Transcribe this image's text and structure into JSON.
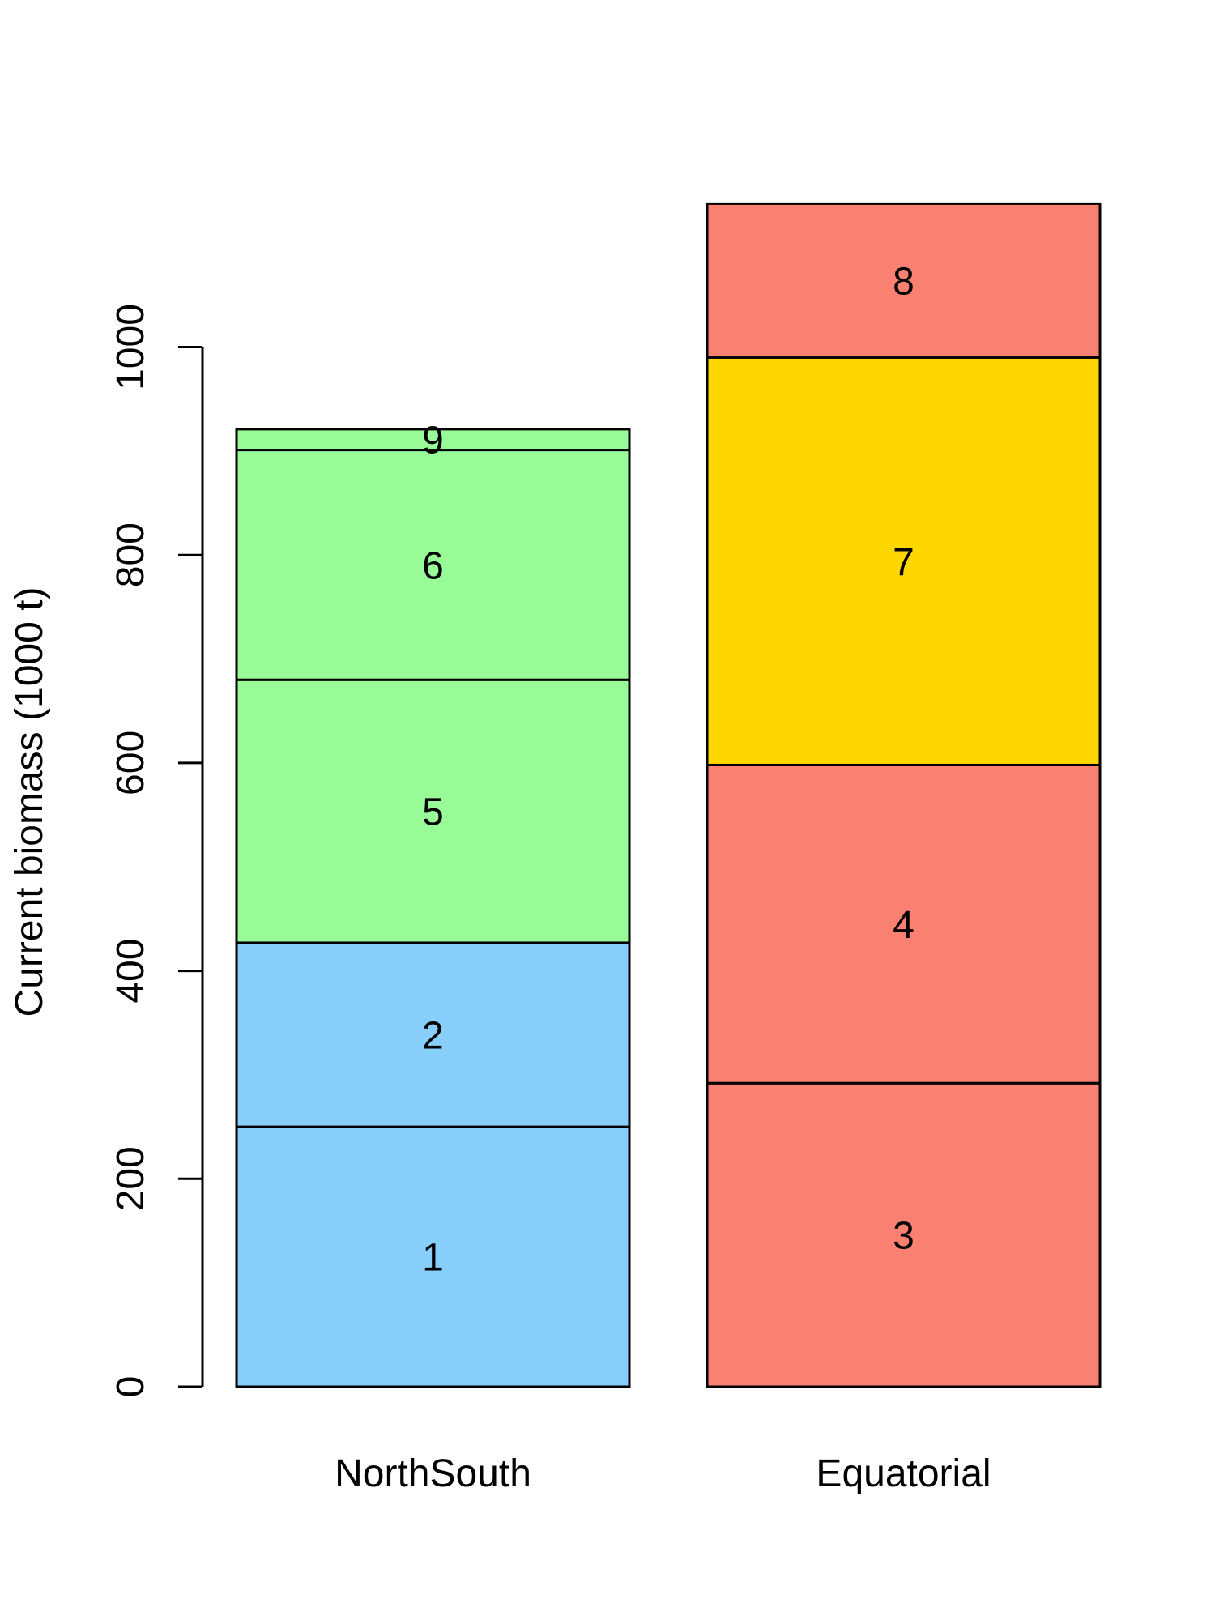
{
  "chart_data": {
    "type": "bar",
    "stacked": true,
    "ylabel": "Current biomass (1000 t)",
    "xlabel": "",
    "ylim": [
      0,
      1150
    ],
    "yticks": [
      0,
      200,
      400,
      600,
      800,
      1000
    ],
    "grid": false,
    "categories": [
      "NorthSouth",
      "Equatorial"
    ],
    "bars": [
      {
        "category": "NorthSouth",
        "segments": [
          {
            "label": "1",
            "value": 250,
            "color": "#87CEFA"
          },
          {
            "label": "2",
            "value": 177,
            "color": "#87CEFA"
          },
          {
            "label": "5",
            "value": 253,
            "color": "#98FB98"
          },
          {
            "label": "6",
            "value": 221,
            "color": "#98FB98"
          },
          {
            "label": "9",
            "value": 20,
            "color": "#98FB98"
          }
        ]
      },
      {
        "category": "Equatorial",
        "segments": [
          {
            "label": "3",
            "value": 292,
            "color": "#FA8072"
          },
          {
            "label": "4",
            "value": 306,
            "color": "#FA8072"
          },
          {
            "label": "7",
            "value": 392,
            "color": "#FFD700"
          },
          {
            "label": "8",
            "value": 148,
            "color": "#FA8072"
          }
        ]
      }
    ]
  }
}
